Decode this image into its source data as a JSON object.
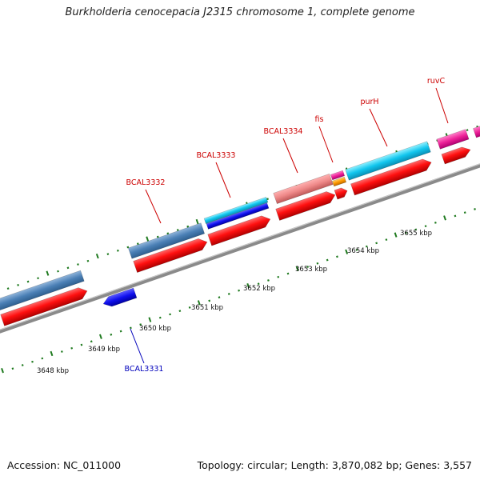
{
  "title": "Burkholderia cenocepacia J2315 chromosome 1, complete genome",
  "footer": {
    "accession": "Accession: NC_011000",
    "topology": "Topology: circular; Length: 3,870,082 bp; Genes: 3,557"
  },
  "scale_labels": [
    "3648 kbp",
    "3649 kbp",
    "3650 kbp",
    "3651 kbp",
    "3652 kbp",
    "3653 kbp",
    "3654 kbp",
    "3655 kbp"
  ],
  "genes": [
    {
      "name": "BCAL3331",
      "color": "#0000bb"
    },
    {
      "name": "BCAL3332",
      "color": "#cc0000"
    },
    {
      "name": "BCAL3333",
      "color": "#cc0000"
    },
    {
      "name": "BCAL3334",
      "color": "#cc0000"
    },
    {
      "name": "fis",
      "color": "#cc0000"
    },
    {
      "name": "purH",
      "color": "#cc0000"
    },
    {
      "name": "ruvC",
      "color": "#cc0000"
    }
  ],
  "colors": {
    "backbone": "#8a8a8a",
    "tick": "#1f7a1f",
    "cds_forward": "#ee1111",
    "cds_reverse": "#1111ee",
    "steelblue": "#4a7fb5",
    "cyan": "#11c6ee",
    "pink": "#ee5577",
    "magenta": "#ee2299",
    "salmon": "#ee8888",
    "orange": "#ff9900"
  }
}
